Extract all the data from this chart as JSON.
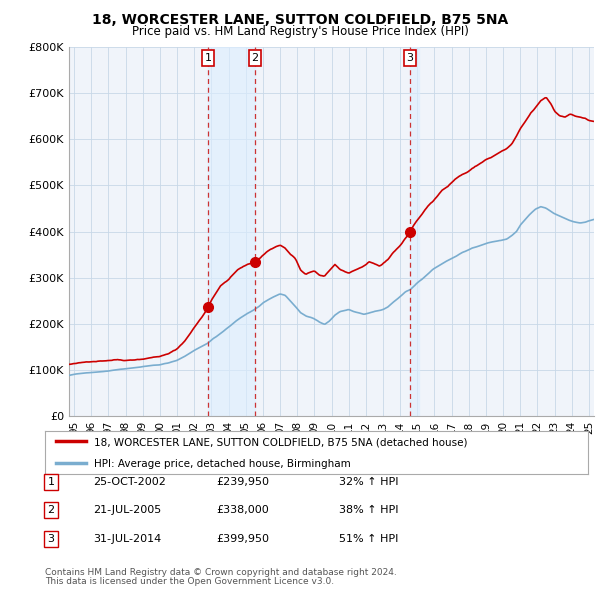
{
  "title": "18, WORCESTER LANE, SUTTON COLDFIELD, B75 5NA",
  "subtitle": "Price paid vs. HM Land Registry's House Price Index (HPI)",
  "red_label": "18, WORCESTER LANE, SUTTON COLDFIELD, B75 5NA (detached house)",
  "blue_label": "HPI: Average price, detached house, Birmingham",
  "transactions": [
    {
      "num": 1,
      "date": "25-OCT-2002",
      "price": 239950,
      "x": 2002.81,
      "pct": "32% ↑ HPI"
    },
    {
      "num": 2,
      "date": "21-JUL-2005",
      "price": 338000,
      "x": 2005.55,
      "pct": "38% ↑ HPI"
    },
    {
      "num": 3,
      "date": "31-JUL-2014",
      "price": 399950,
      "x": 2014.58,
      "pct": "51% ↑ HPI"
    }
  ],
  "footer1": "Contains HM Land Registry data © Crown copyright and database right 2024.",
  "footer2": "This data is licensed under the Open Government Licence v3.0.",
  "red_color": "#cc0000",
  "blue_color": "#7aadcf",
  "shade_color": "#ddeeff",
  "vline_color": "#cc3333",
  "grid_color": "#cccccc",
  "background_color": "#ffffff",
  "chart_bg": "#f0f4fa",
  "ylim": [
    0,
    800000
  ],
  "xlim_start": 1994.7,
  "xlim_end": 2025.3,
  "red_anchors": [
    [
      1994.7,
      112000
    ],
    [
      1995.0,
      113000
    ],
    [
      1995.5,
      115000
    ],
    [
      1996.0,
      118000
    ],
    [
      1996.5,
      120000
    ],
    [
      1997.0,
      122000
    ],
    [
      1997.5,
      124000
    ],
    [
      1998.0,
      123000
    ],
    [
      1998.5,
      125000
    ],
    [
      1999.0,
      127000
    ],
    [
      1999.5,
      130000
    ],
    [
      2000.0,
      133000
    ],
    [
      2000.5,
      138000
    ],
    [
      2001.0,
      148000
    ],
    [
      2001.5,
      168000
    ],
    [
      2002.0,
      195000
    ],
    [
      2002.5,
      220000
    ],
    [
      2002.81,
      239950
    ],
    [
      2003.0,
      255000
    ],
    [
      2003.5,
      285000
    ],
    [
      2004.0,
      300000
    ],
    [
      2004.5,
      320000
    ],
    [
      2005.0,
      330000
    ],
    [
      2005.4,
      335000
    ],
    [
      2005.55,
      338000
    ],
    [
      2005.8,
      345000
    ],
    [
      2006.0,
      352000
    ],
    [
      2006.3,
      362000
    ],
    [
      2006.6,
      368000
    ],
    [
      2007.0,
      375000
    ],
    [
      2007.3,
      368000
    ],
    [
      2007.6,
      355000
    ],
    [
      2007.9,
      345000
    ],
    [
      2008.2,
      320000
    ],
    [
      2008.5,
      310000
    ],
    [
      2008.8,
      315000
    ],
    [
      2009.0,
      318000
    ],
    [
      2009.3,
      308000
    ],
    [
      2009.6,
      305000
    ],
    [
      2009.9,
      318000
    ],
    [
      2010.2,
      330000
    ],
    [
      2010.5,
      320000
    ],
    [
      2010.8,
      315000
    ],
    [
      2011.0,
      312000
    ],
    [
      2011.3,
      318000
    ],
    [
      2011.6,
      322000
    ],
    [
      2011.9,
      328000
    ],
    [
      2012.2,
      335000
    ],
    [
      2012.5,
      330000
    ],
    [
      2012.8,
      325000
    ],
    [
      2013.0,
      330000
    ],
    [
      2013.3,
      340000
    ],
    [
      2013.6,
      355000
    ],
    [
      2014.0,
      370000
    ],
    [
      2014.3,
      385000
    ],
    [
      2014.58,
      399950
    ],
    [
      2014.8,
      415000
    ],
    [
      2015.0,
      425000
    ],
    [
      2015.3,
      440000
    ],
    [
      2015.6,
      455000
    ],
    [
      2015.9,
      465000
    ],
    [
      2016.2,
      478000
    ],
    [
      2016.5,
      492000
    ],
    [
      2016.8,
      500000
    ],
    [
      2017.0,
      508000
    ],
    [
      2017.3,
      518000
    ],
    [
      2017.6,
      525000
    ],
    [
      2017.9,
      530000
    ],
    [
      2018.2,
      538000
    ],
    [
      2018.5,
      545000
    ],
    [
      2018.8,
      552000
    ],
    [
      2019.0,
      558000
    ],
    [
      2019.3,
      562000
    ],
    [
      2019.6,
      568000
    ],
    [
      2019.9,
      575000
    ],
    [
      2020.2,
      580000
    ],
    [
      2020.5,
      590000
    ],
    [
      2020.8,
      608000
    ],
    [
      2021.0,
      622000
    ],
    [
      2021.3,
      638000
    ],
    [
      2021.6,
      655000
    ],
    [
      2021.9,
      668000
    ],
    [
      2022.2,
      682000
    ],
    [
      2022.5,
      690000
    ],
    [
      2022.8,
      675000
    ],
    [
      2023.0,
      660000
    ],
    [
      2023.3,
      650000
    ],
    [
      2023.6,
      648000
    ],
    [
      2023.9,
      655000
    ],
    [
      2024.2,
      650000
    ],
    [
      2024.5,
      648000
    ],
    [
      2024.8,
      645000
    ],
    [
      2025.0,
      640000
    ],
    [
      2025.3,
      638000
    ]
  ],
  "blue_anchors": [
    [
      1994.7,
      88000
    ],
    [
      1995.0,
      90000
    ],
    [
      1995.5,
      92000
    ],
    [
      1996.0,
      94000
    ],
    [
      1996.5,
      95000
    ],
    [
      1997.0,
      97000
    ],
    [
      1997.5,
      100000
    ],
    [
      1998.0,
      102000
    ],
    [
      1998.5,
      104000
    ],
    [
      1999.0,
      106000
    ],
    [
      1999.5,
      108000
    ],
    [
      2000.0,
      110000
    ],
    [
      2000.5,
      114000
    ],
    [
      2001.0,
      120000
    ],
    [
      2001.5,
      130000
    ],
    [
      2002.0,
      142000
    ],
    [
      2002.5,
      152000
    ],
    [
      2002.81,
      158000
    ],
    [
      2003.0,
      165000
    ],
    [
      2003.5,
      178000
    ],
    [
      2004.0,
      192000
    ],
    [
      2004.5,
      208000
    ],
    [
      2005.0,
      220000
    ],
    [
      2005.4,
      228000
    ],
    [
      2005.55,
      232000
    ],
    [
      2005.8,
      238000
    ],
    [
      2006.0,
      245000
    ],
    [
      2006.3,
      252000
    ],
    [
      2006.6,
      258000
    ],
    [
      2007.0,
      265000
    ],
    [
      2007.3,
      262000
    ],
    [
      2007.6,
      250000
    ],
    [
      2007.9,
      238000
    ],
    [
      2008.2,
      225000
    ],
    [
      2008.5,
      218000
    ],
    [
      2008.8,
      215000
    ],
    [
      2009.0,
      212000
    ],
    [
      2009.3,
      205000
    ],
    [
      2009.6,
      200000
    ],
    [
      2009.9,
      208000
    ],
    [
      2010.2,
      220000
    ],
    [
      2010.5,
      228000
    ],
    [
      2010.8,
      230000
    ],
    [
      2011.0,
      232000
    ],
    [
      2011.3,
      228000
    ],
    [
      2011.6,
      225000
    ],
    [
      2011.9,
      222000
    ],
    [
      2012.2,
      225000
    ],
    [
      2012.5,
      228000
    ],
    [
      2012.8,
      230000
    ],
    [
      2013.0,
      232000
    ],
    [
      2013.3,
      238000
    ],
    [
      2013.6,
      248000
    ],
    [
      2014.0,
      260000
    ],
    [
      2014.3,
      270000
    ],
    [
      2014.58,
      275000
    ],
    [
      2014.8,
      282000
    ],
    [
      2015.0,
      290000
    ],
    [
      2015.3,
      298000
    ],
    [
      2015.6,
      308000
    ],
    [
      2015.9,
      318000
    ],
    [
      2016.2,
      325000
    ],
    [
      2016.5,
      332000
    ],
    [
      2016.8,
      338000
    ],
    [
      2017.0,
      342000
    ],
    [
      2017.3,
      348000
    ],
    [
      2017.6,
      355000
    ],
    [
      2017.9,
      360000
    ],
    [
      2018.2,
      365000
    ],
    [
      2018.5,
      368000
    ],
    [
      2018.8,
      372000
    ],
    [
      2019.0,
      375000
    ],
    [
      2019.3,
      378000
    ],
    [
      2019.6,
      380000
    ],
    [
      2019.9,
      382000
    ],
    [
      2020.2,
      385000
    ],
    [
      2020.5,
      392000
    ],
    [
      2020.8,
      402000
    ],
    [
      2021.0,
      415000
    ],
    [
      2021.3,
      428000
    ],
    [
      2021.6,
      440000
    ],
    [
      2021.9,
      450000
    ],
    [
      2022.2,
      455000
    ],
    [
      2022.5,
      452000
    ],
    [
      2022.8,
      445000
    ],
    [
      2023.0,
      440000
    ],
    [
      2023.3,
      435000
    ],
    [
      2023.6,
      430000
    ],
    [
      2023.9,
      425000
    ],
    [
      2024.2,
      422000
    ],
    [
      2024.5,
      420000
    ],
    [
      2024.8,
      422000
    ],
    [
      2025.0,
      425000
    ],
    [
      2025.3,
      428000
    ]
  ]
}
